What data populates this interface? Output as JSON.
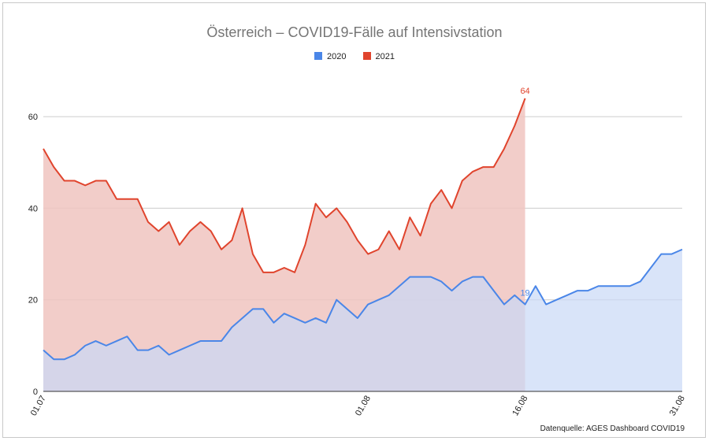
{
  "chart_data": {
    "type": "area",
    "title": "Österreich – COVID19-Fälle auf Intensivstation",
    "ylim": [
      0,
      70
    ],
    "yticks": [
      0,
      20,
      40,
      60
    ],
    "xtick_labels": [
      "01.07",
      "01.08",
      "16.08",
      "31.08"
    ],
    "xtick_index": [
      0,
      31,
      46,
      61
    ],
    "grid": true,
    "legend": "top-center",
    "series": [
      {
        "name": "2020",
        "color": "#4a86e8",
        "fill": "#c9d9f7",
        "values": [
          9,
          7,
          7,
          8,
          10,
          11,
          10,
          11,
          12,
          9,
          9,
          10,
          8,
          9,
          10,
          11,
          11,
          11,
          14,
          16,
          18,
          18,
          15,
          17,
          16,
          15,
          16,
          15,
          20,
          18,
          16,
          19,
          20,
          21,
          23,
          25,
          25,
          25,
          24,
          22,
          24,
          25,
          25,
          22,
          19,
          21,
          19,
          23,
          19,
          20,
          21,
          22,
          22,
          23,
          23,
          23,
          23,
          24,
          27,
          30,
          30,
          31
        ],
        "end_label": "19"
      },
      {
        "name": "2021",
        "color": "#e0442d",
        "fill": "#f0c4c0",
        "values": [
          53,
          49,
          46,
          46,
          45,
          46,
          46,
          42,
          42,
          42,
          37,
          35,
          37,
          32,
          35,
          37,
          35,
          31,
          33,
          40,
          30,
          26,
          26,
          27,
          26,
          32,
          41,
          38,
          40,
          37,
          33,
          30,
          31,
          35,
          31,
          38,
          34,
          41,
          44,
          40,
          46,
          48,
          49,
          49,
          53,
          58,
          64
        ],
        "end_label": "64"
      }
    ]
  },
  "source_label": "Datenquelle: AGES Dashboard COVID19"
}
